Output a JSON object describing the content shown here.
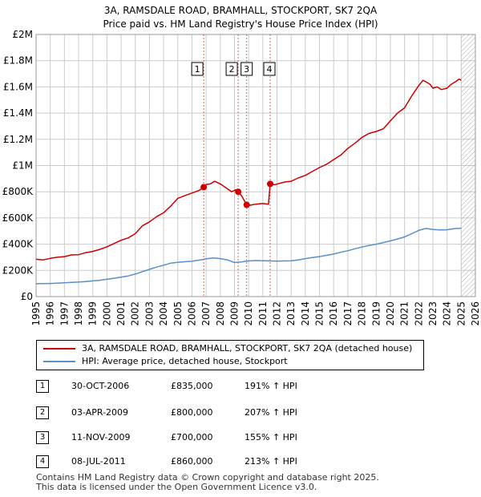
{
  "colors": {
    "property": "#cc0000",
    "hpi": "#5b8fc9",
    "grid": "#cccccc",
    "marker_line": "#cc0000",
    "future_hatch": "#999999"
  },
  "title": {
    "line1": "3A, RAMSDALE ROAD, BRAMHALL, STOCKPORT, SK7 2QA",
    "line2": "Price paid vs. HM Land Registry's House Price Index (HPI)"
  },
  "legend": {
    "property_label": "3A, RAMSDALE ROAD, BRAMHALL, STOCKPORT, SK7 2QA (detached house)",
    "hpi_label": "HPI: Average price, detached house, Stockport"
  },
  "transactions": [
    {
      "num": "1",
      "date": "30-OCT-2006",
      "price": "£835,000",
      "hpi": "191% ↑ HPI"
    },
    {
      "num": "2",
      "date": "03-APR-2009",
      "price": "£800,000",
      "hpi": "207% ↑ HPI"
    },
    {
      "num": "3",
      "date": "11-NOV-2009",
      "price": "£700,000",
      "hpi": "155% ↑ HPI"
    },
    {
      "num": "4",
      "date": "08-JUL-2011",
      "price": "£860,000",
      "hpi": "213% ↑ HPI"
    }
  ],
  "footer": {
    "line1": "Contains HM Land Registry data © Crown copyright and database right 2025.",
    "line2": "This data is licensed under the Open Government Licence v3.0."
  },
  "chart_data": {
    "type": "line",
    "title": "3A, RAMSDALE ROAD, BRAMHALL, STOCKPORT, SK7 2QA",
    "subtitle": "Price paid vs. HM Land Registry's House Price Index (HPI)",
    "xlabel": "",
    "ylabel": "",
    "xlim": [
      1995,
      2026
    ],
    "ylim": [
      0,
      2000000
    ],
    "x_ticks": [
      1995,
      1996,
      1997,
      1998,
      1999,
      2000,
      2001,
      2002,
      2003,
      2004,
      2005,
      2006,
      2007,
      2008,
      2009,
      2010,
      2011,
      2012,
      2013,
      2014,
      2015,
      2016,
      2017,
      2018,
      2019,
      2020,
      2021,
      2022,
      2023,
      2024,
      2025,
      2026
    ],
    "y_ticks": [
      0,
      200000,
      400000,
      600000,
      800000,
      1000000,
      1200000,
      1400000,
      1600000,
      1800000,
      2000000
    ],
    "y_tick_labels": [
      "£0",
      "£200K",
      "£400K",
      "£600K",
      "£800K",
      "£1M",
      "£1.2M",
      "£1.4M",
      "£1.6M",
      "£1.8M",
      "£2M"
    ],
    "grid": true,
    "hatched_from": 2025.0,
    "series": [
      {
        "name": "3A, RAMSDALE ROAD, BRAMHALL, STOCKPORT, SK7 2QA (detached house)",
        "x": [
          1995.0,
          1995.5,
          1996.0,
          1996.5,
          1997.0,
          1997.5,
          1998.0,
          1998.5,
          1999.0,
          1999.5,
          2000.0,
          2000.5,
          2001.0,
          2001.5,
          2002.0,
          2002.5,
          2003.0,
          2003.5,
          2004.0,
          2004.5,
          2005.0,
          2005.5,
          2006.0,
          2006.5,
          2006.83,
          2007.0,
          2007.3,
          2007.6,
          2008.0,
          2008.4,
          2008.8,
          2009.1,
          2009.26,
          2009.5,
          2009.86,
          2010.0,
          2010.5,
          2011.0,
          2011.4,
          2011.52,
          2011.6,
          2011.9,
          2012.2,
          2012.6,
          2013.0,
          2013.5,
          2014.0,
          2014.5,
          2015.0,
          2015.5,
          2016.0,
          2016.5,
          2017.0,
          2017.5,
          2018.0,
          2018.5,
          2019.0,
          2019.5,
          2020.0,
          2020.5,
          2021.0,
          2021.5,
          2022.0,
          2022.3,
          2022.5,
          2022.8,
          2023.0,
          2023.3,
          2023.6,
          2024.0,
          2024.3,
          2024.6,
          2024.85,
          2025.0
        ],
        "values": [
          285000,
          280000,
          292000,
          300000,
          305000,
          318000,
          320000,
          335000,
          345000,
          360000,
          380000,
          405000,
          430000,
          448000,
          480000,
          540000,
          570000,
          610000,
          640000,
          690000,
          750000,
          770000,
          790000,
          810000,
          835000,
          855000,
          860000,
          880000,
          860000,
          830000,
          800000,
          815000,
          800000,
          770000,
          700000,
          695000,
          705000,
          710000,
          705000,
          860000,
          855000,
          855000,
          865000,
          875000,
          880000,
          905000,
          925000,
          955000,
          985000,
          1010000,
          1045000,
          1080000,
          1130000,
          1170000,
          1215000,
          1245000,
          1260000,
          1280000,
          1340000,
          1400000,
          1440000,
          1530000,
          1610000,
          1650000,
          1640000,
          1620000,
          1590000,
          1600000,
          1580000,
          1590000,
          1620000,
          1640000,
          1660000,
          1650000
        ]
      },
      {
        "name": "HPI: Average price, detached house, Stockport",
        "x": [
          1995.0,
          1995.5,
          1996.0,
          1996.5,
          1997.0,
          1997.5,
          1998.0,
          1998.5,
          1999.0,
          1999.5,
          2000.0,
          2000.5,
          2001.0,
          2001.5,
          2002.0,
          2002.5,
          2003.0,
          2003.5,
          2004.0,
          2004.5,
          2005.0,
          2005.5,
          2006.0,
          2006.5,
          2007.0,
          2007.5,
          2008.0,
          2008.5,
          2009.0,
          2009.5,
          2010.0,
          2010.5,
          2011.0,
          2011.5,
          2012.0,
          2012.5,
          2013.0,
          2013.5,
          2014.0,
          2014.5,
          2015.0,
          2015.5,
          2016.0,
          2016.5,
          2017.0,
          2017.5,
          2018.0,
          2018.5,
          2019.0,
          2019.5,
          2020.0,
          2020.5,
          2021.0,
          2021.5,
          2022.0,
          2022.5,
          2023.0,
          2023.5,
          2024.0,
          2024.5,
          2025.0
        ],
        "values": [
          98000,
          99000,
          100000,
          102000,
          105000,
          108000,
          111000,
          115000,
          120000,
          125000,
          132000,
          140000,
          148000,
          158000,
          172000,
          190000,
          208000,
          225000,
          240000,
          255000,
          262000,
          266000,
          270000,
          278000,
          288000,
          295000,
          290000,
          280000,
          260000,
          265000,
          272000,
          275000,
          274000,
          272000,
          271000,
          272000,
          273000,
          280000,
          290000,
          298000,
          305000,
          315000,
          325000,
          338000,
          350000,
          365000,
          378000,
          390000,
          400000,
          412000,
          425000,
          440000,
          455000,
          480000,
          505000,
          520000,
          512000,
          508000,
          510000,
          518000,
          522000
        ]
      }
    ],
    "markers": [
      {
        "label": "1",
        "x": 2006.83,
        "value": 835000
      },
      {
        "label": "2",
        "x": 2009.26,
        "value": 800000
      },
      {
        "label": "3",
        "x": 2009.86,
        "value": 700000
      },
      {
        "label": "4",
        "x": 2011.52,
        "value": 860000
      }
    ]
  }
}
